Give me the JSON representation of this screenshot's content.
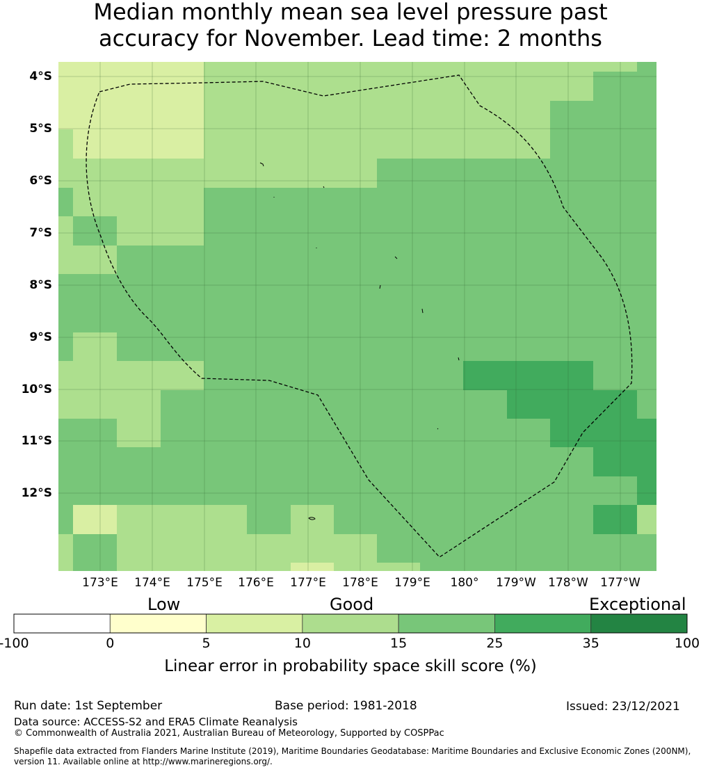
{
  "title": {
    "line1": "Median monthly mean sea level pressure past",
    "line2": "accuracy for November. Lead time: 2 months"
  },
  "map": {
    "lat_labels": [
      "4°S",
      "5°S",
      "6°S",
      "7°S",
      "8°S",
      "9°S",
      "10°S",
      "11°S",
      "12°S"
    ],
    "lon_labels": [
      "173°E",
      "174°E",
      "175°E",
      "176°E",
      "177°E",
      "178°E",
      "179°E",
      "180°",
      "179°W",
      "178°W",
      "177°W"
    ],
    "grid_cols": 14,
    "grid_rows": 18,
    "cells": [
      "55555667666666",
      "55555667666666",
      "55555666666777",
      "66666666667777",
      "55556666667777",
      "55556666888777",
      "56666888888777",
      "56666888888777",
      "55888888888888",
      "55888888888888",
      "88888888888888",
      "88888888888888",
      "56688888888888",
      "56688888888888",
      "88888888888888",
      "88888888888888",
      "88888888888888",
      "88888888888888"
    ],
    "colors": {
      "5": "#d9efa3",
      "6": "#addf8e",
      "7": "#78c679",
      "8": "#78c679"
    }
  },
  "colorbar": {
    "categories": [
      "Low",
      "Good",
      "Exceptional"
    ],
    "ticks": [
      "-100",
      "0",
      "5",
      "10",
      "15",
      "25",
      "35",
      "100"
    ],
    "colors": [
      "#ffffff",
      "#ffffcc",
      "#d9f0a3",
      "#addd8e",
      "#78c679",
      "#41ab5d",
      "#238443"
    ],
    "label": "Linear error in probability space skill score (%)"
  },
  "footer": {
    "run_date": "Run date: 1st September",
    "base_period": "Base period: 1981-2018",
    "issued": "Issued: 23/12/2021",
    "data_source": "Data source: ACCESS-S2 and ERA5 Climate Reanalysis",
    "copyright": "© Commonwealth of Australia 2021, Australian Bureau of Meteorology, Supported by COSPPac",
    "shapefile_line1": "Shapefile data extracted from Flanders Marine Institute (2019), Maritime Boundaries Geodatabase: Maritime Boundaries and Exclusive Economic Zones (200NM),",
    "shapefile_line2": "version 11. Available online at http://www.marineregions.org/."
  }
}
